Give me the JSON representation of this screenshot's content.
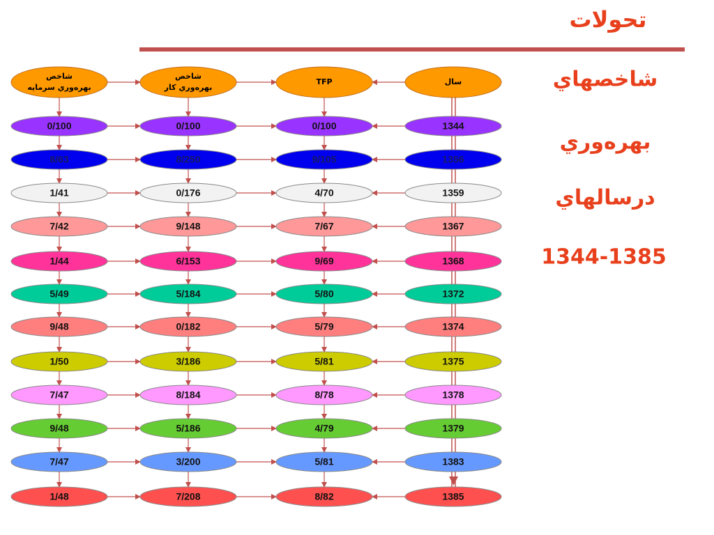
{
  "title": "تحولات",
  "side": [
    "شاخصهاي",
    "بهره‌وري",
    "درسالهاي",
    "1344-1385"
  ],
  "headers": [
    [
      "شاخص",
      "بهره‌وري سرمايه"
    ],
    [
      "شاخص",
      "بهره‌وري كار"
    ],
    [
      "TFP"
    ],
    [
      "سال"
    ]
  ],
  "rows": [
    [
      "0/100",
      "0/100",
      "0/100",
      "1344"
    ],
    [
      "8/63",
      "8/250",
      "9/105",
      "1356"
    ],
    [
      "1/41",
      "0/176",
      "4/70",
      "1359"
    ],
    [
      "7/42",
      "9/148",
      "7/67",
      "1367"
    ],
    [
      "1/44",
      "6/153",
      "9/69",
      "1368"
    ],
    [
      "5/49",
      "5/184",
      "5/80",
      "1372"
    ],
    [
      "9/48",
      "0/182",
      "5/79",
      "1374"
    ],
    [
      "1/50",
      "3/186",
      "5/81",
      "1375"
    ],
    [
      "7/47",
      "8/184",
      "8/78",
      "1378"
    ],
    [
      "9/48",
      "5/186",
      "4/79",
      "1379"
    ],
    [
      "7/47",
      "3/200",
      "5/81",
      "1383"
    ],
    [
      "1/48",
      "7/208",
      "8/82",
      "1385"
    ]
  ]
}
